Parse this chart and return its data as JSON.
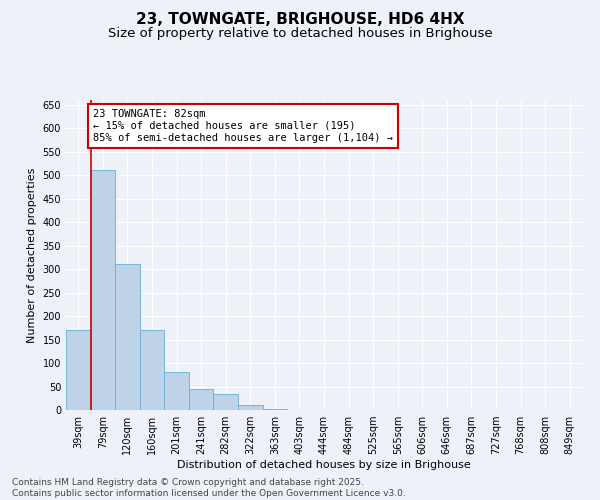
{
  "title": "23, TOWNGATE, BRIGHOUSE, HD6 4HX",
  "subtitle": "Size of property relative to detached houses in Brighouse",
  "xlabel": "Distribution of detached houses by size in Brighouse",
  "ylabel": "Number of detached properties",
  "bar_labels": [
    "39sqm",
    "79sqm",
    "120sqm",
    "160sqm",
    "201sqm",
    "241sqm",
    "282sqm",
    "322sqm",
    "363sqm",
    "403sqm",
    "444sqm",
    "484sqm",
    "525sqm",
    "565sqm",
    "606sqm",
    "646sqm",
    "687sqm",
    "727sqm",
    "768sqm",
    "808sqm",
    "849sqm"
  ],
  "bar_values": [
    170,
    510,
    310,
    170,
    80,
    45,
    35,
    10,
    3,
    1,
    0,
    0,
    0,
    0,
    1,
    0,
    0,
    0,
    0,
    0,
    0
  ],
  "bar_color": "#bed3e8",
  "bar_edge_color": "#6baed6",
  "ylim": [
    0,
    660
  ],
  "yticks": [
    0,
    50,
    100,
    150,
    200,
    250,
    300,
    350,
    400,
    450,
    500,
    550,
    600,
    650
  ],
  "red_line_x": 0.5,
  "annotation_title": "23 TOWNGATE: 82sqm",
  "annotation_line1": "← 15% of detached houses are smaller (195)",
  "annotation_line2": "85% of semi-detached houses are larger (1,104) →",
  "annotation_box_color": "#ffffff",
  "annotation_box_edge_color": "#cc0000",
  "red_line_color": "#cc0000",
  "background_color": "#eef2f8",
  "grid_color": "#ffffff",
  "footer_line1": "Contains HM Land Registry data © Crown copyright and database right 2025.",
  "footer_line2": "Contains public sector information licensed under the Open Government Licence v3.0.",
  "title_fontsize": 11,
  "subtitle_fontsize": 9.5,
  "axis_label_fontsize": 8,
  "tick_fontsize": 7,
  "annotation_fontsize": 7.5,
  "footer_fontsize": 6.5
}
